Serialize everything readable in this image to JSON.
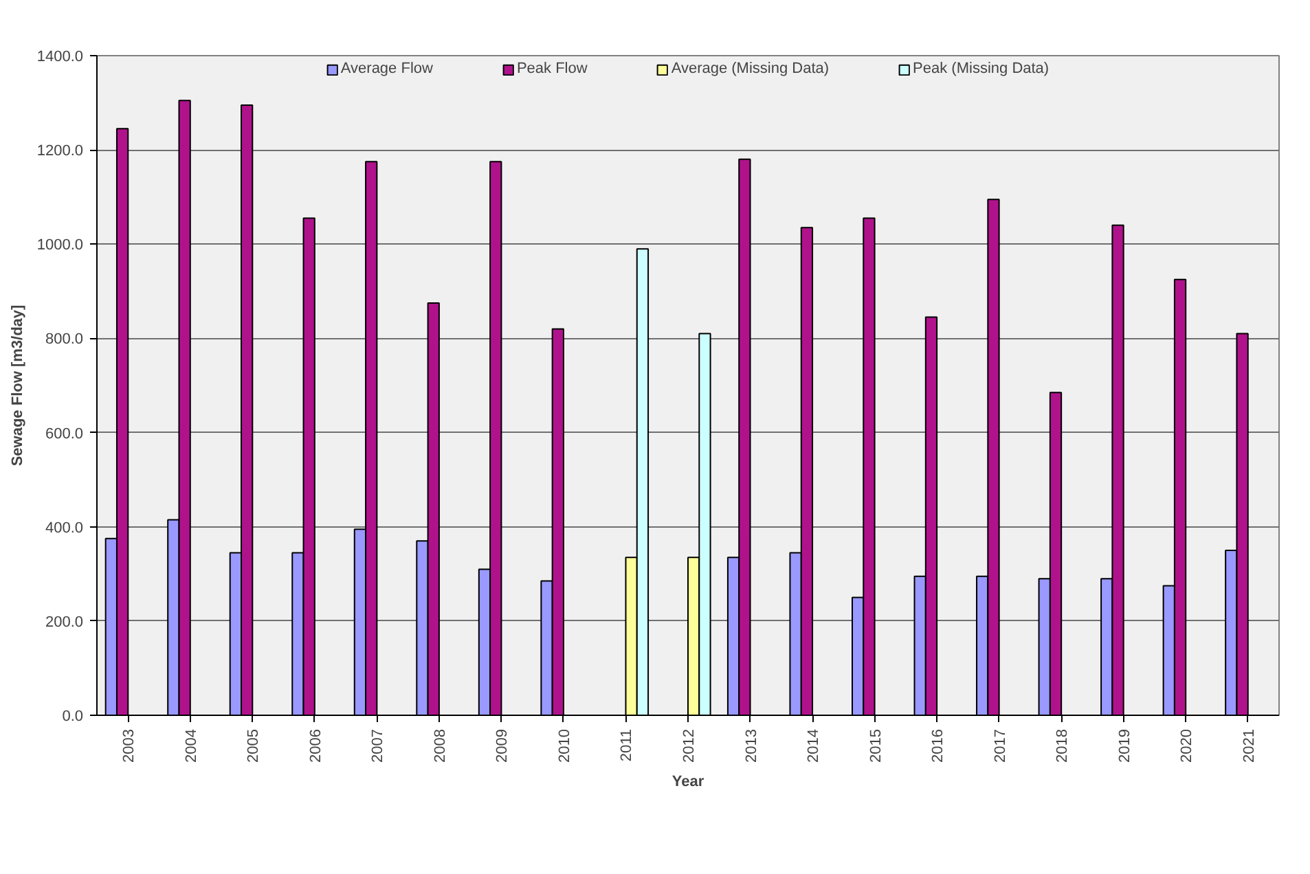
{
  "chart_data": {
    "type": "bar",
    "xlabel": "Year",
    "ylabel": "Sewage Flow [m3/day]",
    "categories": [
      "2003",
      "2004",
      "2005",
      "2006",
      "2007",
      "2008",
      "2009",
      "2010",
      "2011",
      "2012",
      "2013",
      "2014",
      "2015",
      "2016",
      "2017",
      "2018",
      "2019",
      "2020",
      "2021"
    ],
    "series": [
      {
        "name": "Average Flow",
        "color": "#9999ff",
        "values": [
          375,
          415,
          345,
          345,
          395,
          370,
          310,
          285,
          null,
          null,
          335,
          345,
          250,
          295,
          295,
          290,
          290,
          275,
          350
        ]
      },
      {
        "name": "Peak Flow",
        "color": "#b0128c",
        "values": [
          1245,
          1305,
          1295,
          1055,
          1175,
          875,
          1175,
          820,
          null,
          null,
          1180,
          1035,
          1055,
          845,
          1095,
          685,
          1040,
          925,
          810
        ]
      },
      {
        "name": "Average (Missing Data)",
        "color": "#ffff99",
        "values": [
          null,
          null,
          null,
          null,
          null,
          null,
          null,
          null,
          335,
          335,
          null,
          null,
          null,
          null,
          null,
          null,
          null,
          null,
          null
        ]
      },
      {
        "name": "Peak (Missing Data)",
        "color": "#ccffff",
        "values": [
          null,
          null,
          null,
          null,
          null,
          null,
          null,
          null,
          990,
          810,
          null,
          null,
          null,
          null,
          null,
          null,
          null,
          null,
          null
        ]
      }
    ],
    "ylim": [
      0,
      1400
    ],
    "yticks": [
      {
        "value": 0,
        "label": "0.0"
      },
      {
        "value": 200,
        "label": "200.0"
      },
      {
        "value": 400,
        "label": "400.0"
      },
      {
        "value": 600,
        "label": "600.0"
      },
      {
        "value": 800,
        "label": "800.0"
      },
      {
        "value": 1000,
        "label": "1000.0"
      },
      {
        "value": 1200,
        "label": "1200.0"
      },
      {
        "value": 1400,
        "label": "1400.0"
      }
    ],
    "grid": "y",
    "legend": "top"
  }
}
